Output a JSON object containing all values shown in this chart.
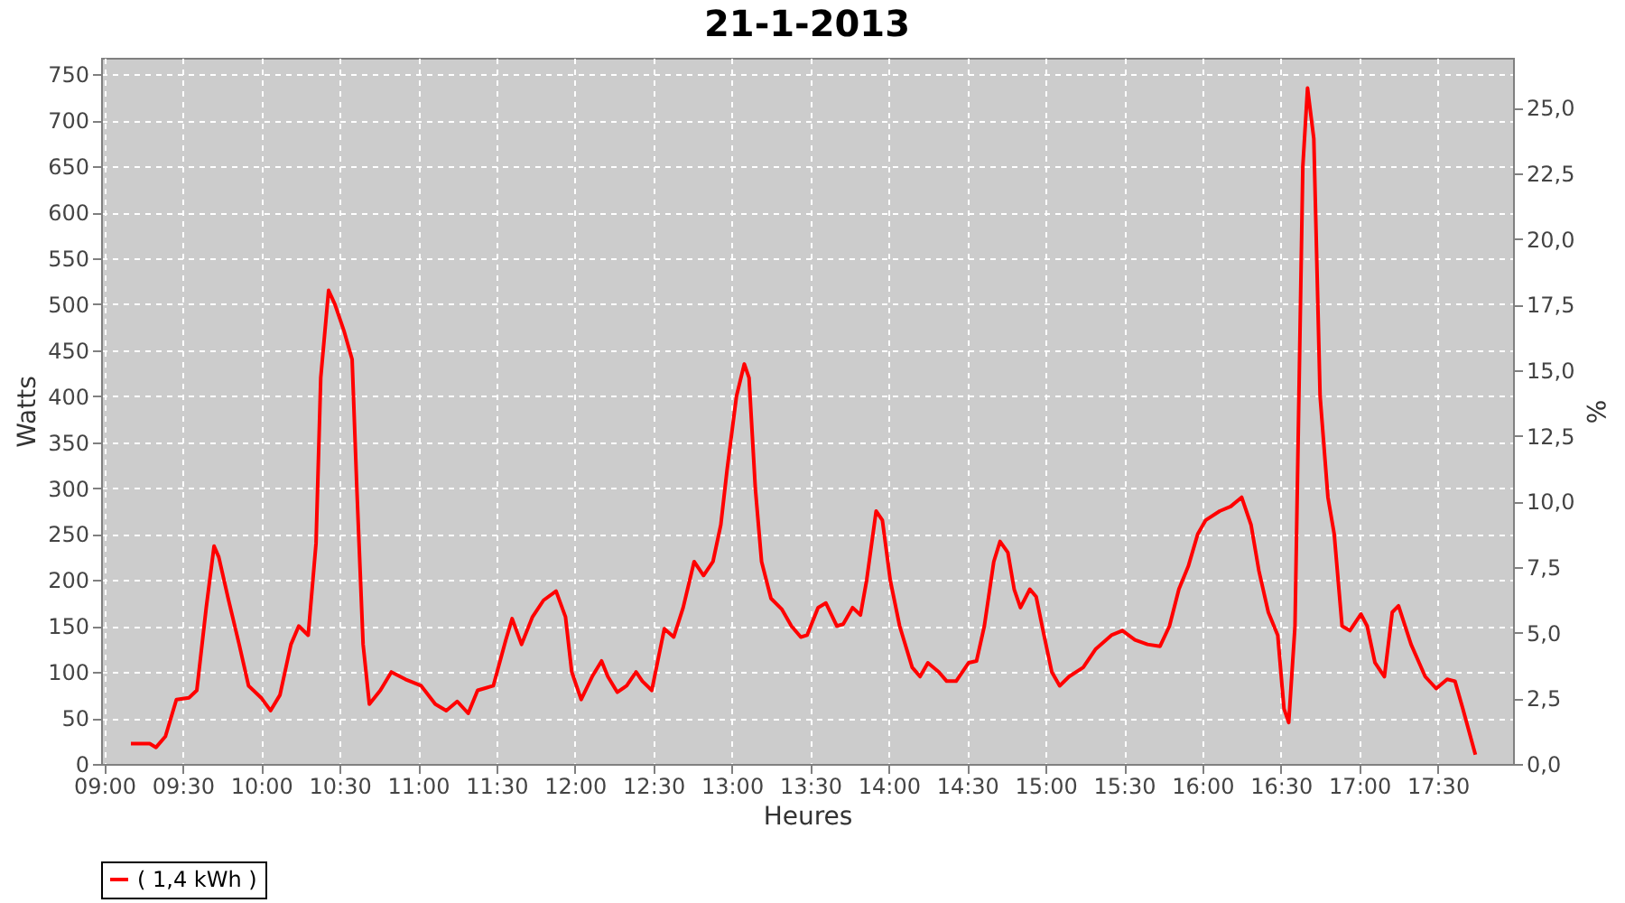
{
  "chart_data": {
    "type": "line",
    "title": "21-1-2013",
    "xlabel": "Heures",
    "ylabel": "Watts",
    "y2label": "%",
    "x": [
      9.17,
      9.29,
      9.33,
      9.39,
      9.46,
      9.54,
      9.59,
      9.65,
      9.7,
      9.73,
      9.79,
      9.86,
      9.92,
      10.0,
      10.06,
      10.12,
      10.19,
      10.24,
      10.3,
      10.35,
      10.38,
      10.43,
      10.47,
      10.53,
      10.58,
      10.61,
      10.65,
      10.69,
      10.76,
      10.83,
      10.92,
      11.02,
      11.11,
      11.18,
      11.25,
      11.32,
      11.38,
      11.48,
      11.56,
      11.6,
      11.66,
      11.73,
      11.8,
      11.88,
      11.94,
      11.98,
      12.04,
      12.11,
      12.17,
      12.21,
      12.27,
      12.33,
      12.39,
      12.43,
      12.49,
      12.57,
      12.63,
      12.69,
      12.76,
      12.82,
      12.88,
      12.93,
      12.97,
      13.03,
      13.08,
      13.11,
      13.15,
      13.19,
      13.25,
      13.32,
      13.38,
      13.44,
      13.48,
      13.55,
      13.6,
      13.67,
      13.71,
      13.77,
      13.82,
      13.86,
      13.92,
      13.96,
      14.01,
      14.07,
      14.15,
      14.2,
      14.25,
      14.32,
      14.37,
      14.43,
      14.51,
      14.56,
      14.61,
      14.67,
      14.71,
      14.76,
      14.8,
      14.84,
      14.9,
      14.94,
      14.99,
      15.04,
      15.09,
      15.15,
      15.24,
      15.32,
      15.42,
      15.49,
      15.57,
      15.65,
      15.73,
      15.79,
      15.85,
      15.91,
      15.97,
      16.02,
      16.11,
      16.18,
      16.25,
      16.31,
      16.36,
      16.42,
      16.48,
      16.52,
      16.55,
      16.59,
      16.64,
      16.67,
      16.71,
      16.75,
      16.8,
      16.84,
      16.89,
      16.94,
      17.01,
      17.05,
      17.1,
      17.16,
      17.21,
      17.25,
      17.33,
      17.42,
      17.49,
      17.56,
      17.61,
      17.66,
      17.74
    ],
    "series": [
      {
        "name": "( 1,4 kWh )",
        "color": "#ff0000",
        "values": [
          22,
          22,
          18,
          30,
          70,
          72,
          80,
          170,
          237,
          225,
          180,
          130,
          85,
          72,
          58,
          75,
          130,
          150,
          140,
          240,
          420,
          515,
          500,
          470,
          440,
          300,
          130,
          65,
          80,
          100,
          92,
          85,
          65,
          58,
          68,
          55,
          80,
          85,
          135,
          158,
          130,
          160,
          178,
          188,
          160,
          100,
          70,
          95,
          112,
          95,
          78,
          85,
          100,
          90,
          80,
          147,
          138,
          170,
          220,
          205,
          220,
          260,
          320,
          400,
          435,
          420,
          300,
          220,
          180,
          168,
          150,
          138,
          140,
          170,
          175,
          150,
          152,
          170,
          162,
          200,
          275,
          265,
          200,
          150,
          105,
          95,
          110,
          100,
          90,
          90,
          110,
          112,
          150,
          220,
          242,
          230,
          190,
          170,
          190,
          182,
          140,
          100,
          85,
          95,
          105,
          125,
          140,
          145,
          135,
          130,
          128,
          150,
          190,
          215,
          250,
          265,
          275,
          280,
          290,
          260,
          210,
          165,
          140,
          60,
          45,
          150,
          650,
          735,
          680,
          400,
          290,
          250,
          150,
          145,
          163,
          150,
          110,
          95,
          165,
          172,
          130,
          95,
          82,
          92,
          90,
          60,
          10
        ]
      }
    ],
    "xlim": [
      8.98,
      17.98
    ],
    "xticks": [
      {
        "value": 9,
        "label": "09:00"
      },
      {
        "value": 9.5,
        "label": "09:30"
      },
      {
        "value": 10,
        "label": "10:00"
      },
      {
        "value": 10.5,
        "label": "10:30"
      },
      {
        "value": 11,
        "label": "11:00"
      },
      {
        "value": 11.5,
        "label": "11:30"
      },
      {
        "value": 12,
        "label": "12:00"
      },
      {
        "value": 12.5,
        "label": "12:30"
      },
      {
        "value": 13,
        "label": "13:00"
      },
      {
        "value": 13.5,
        "label": "13:30"
      },
      {
        "value": 14,
        "label": "14:00"
      },
      {
        "value": 14.5,
        "label": "14:30"
      },
      {
        "value": 15,
        "label": "15:00"
      },
      {
        "value": 15.5,
        "label": "15:30"
      },
      {
        "value": 16,
        "label": "16:00"
      },
      {
        "value": 16.5,
        "label": "16:30"
      },
      {
        "value": 17,
        "label": "17:00"
      },
      {
        "value": 17.5,
        "label": "17:30"
      }
    ],
    "ylim": [
      0,
      768
    ],
    "yticks": [
      0,
      50,
      100,
      150,
      200,
      250,
      300,
      350,
      400,
      450,
      500,
      550,
      600,
      650,
      700,
      750
    ],
    "y2lim": [
      0,
      26.9
    ],
    "y2ticks": [
      {
        "value": 0,
        "label": "0,0"
      },
      {
        "value": 2.5,
        "label": "2,5"
      },
      {
        "value": 5,
        "label": "5,0"
      },
      {
        "value": 7.5,
        "label": "7,5"
      },
      {
        "value": 10,
        "label": "10,0"
      },
      {
        "value": 12.5,
        "label": "12,5"
      },
      {
        "value": 15,
        "label": "15,0"
      },
      {
        "value": 17.5,
        "label": "17,5"
      },
      {
        "value": 20,
        "label": "20,0"
      },
      {
        "value": 22.5,
        "label": "22,5"
      },
      {
        "value": 25,
        "label": "25,0"
      }
    ],
    "grid": true,
    "legend": "bottom",
    "line_style": "solid",
    "marker": "none"
  }
}
